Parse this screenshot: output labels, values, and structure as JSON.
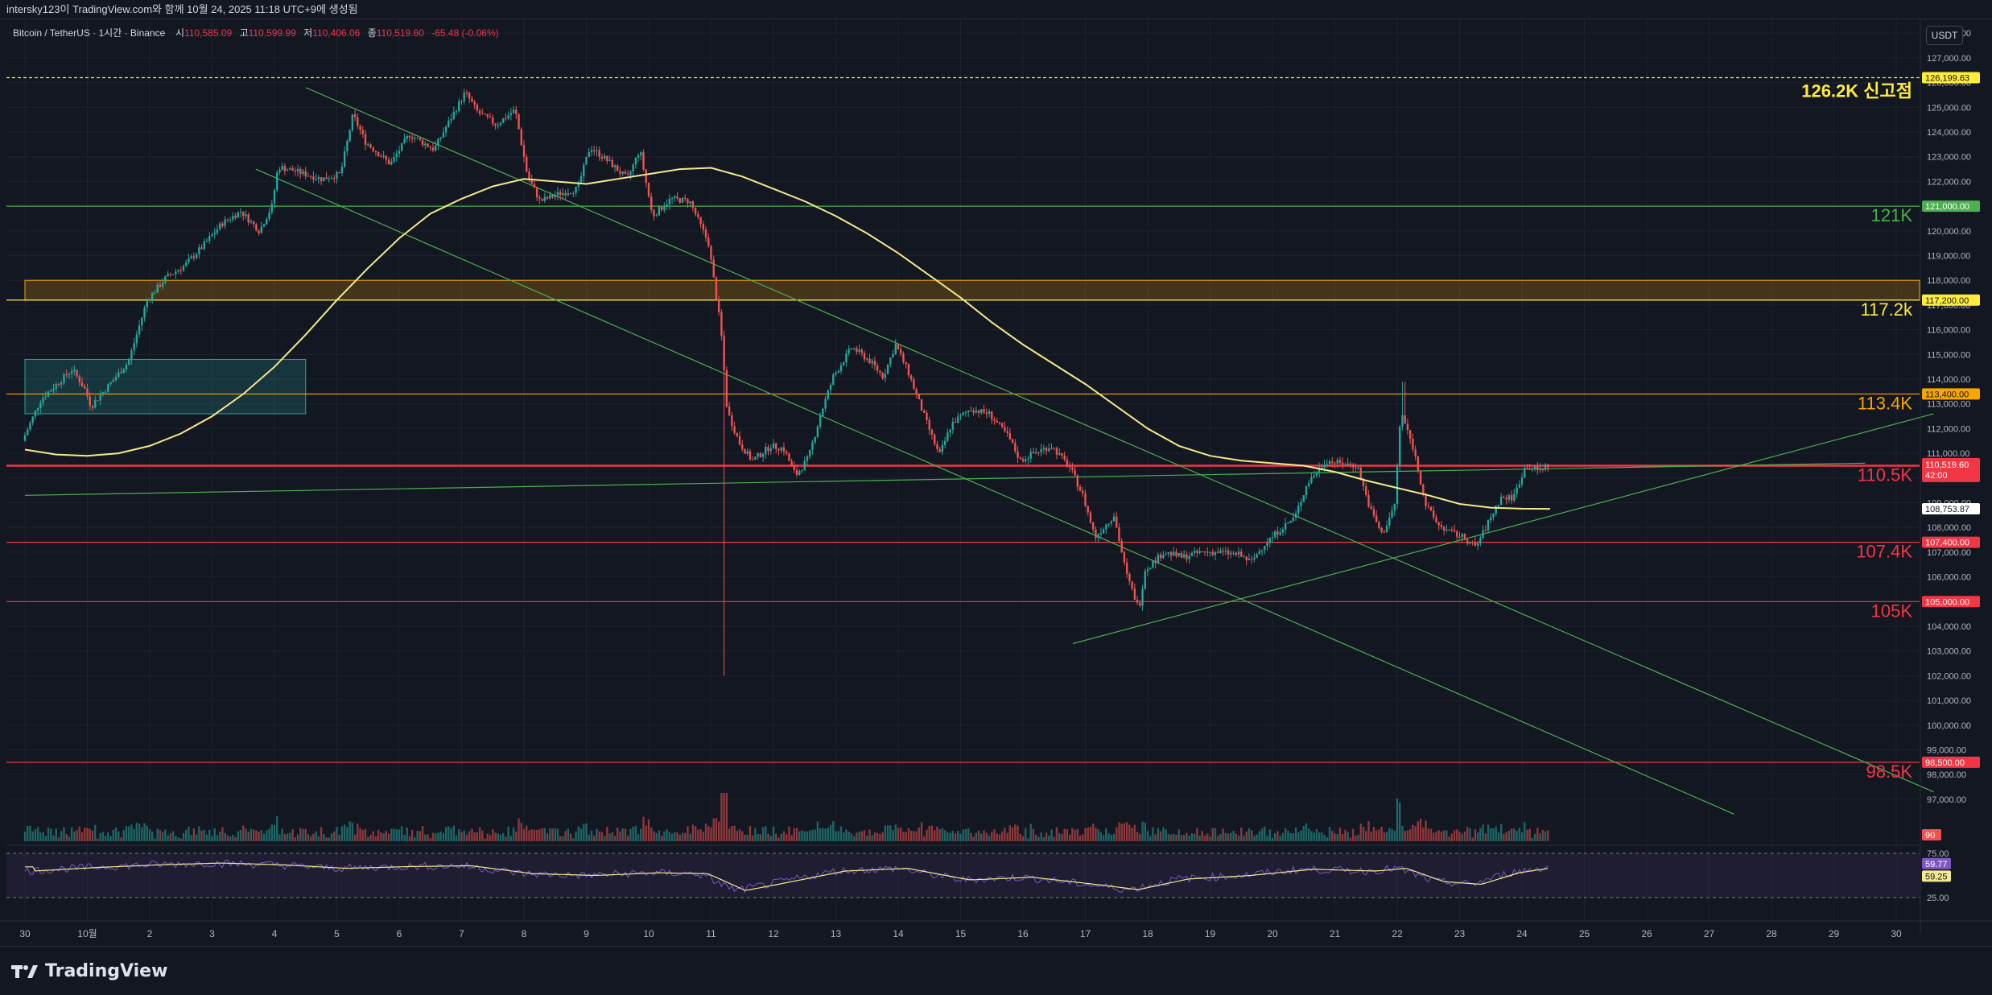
{
  "header": {
    "snapshot_info": "intersky123이 TradingView.com와 함께 10월 24, 2025 11:18 UTC+9에 생성됨"
  },
  "legend": {
    "symbol": "Bitcoin / TetherUS · 1시간 · Binance",
    "open_label": "시",
    "open": "110,585.09",
    "high_label": "고",
    "high": "110,599.99",
    "low_label": "저",
    "low": "110,406.06",
    "close_label": "종",
    "close": "110,519.60",
    "change": "-65.48 (-0.06%)"
  },
  "currency_badge": "USDT",
  "branding": {
    "name": "TradingView"
  },
  "colors": {
    "background": "#131722",
    "grid": "#1e222d",
    "up": "#26a69a",
    "down": "#ef5350",
    "ma": "#f4e98c",
    "trend": "#4caf50",
    "resistance_red": "#f23645",
    "orange": "#f7a600",
    "yellow_label": "#ffeb3b",
    "rsi": "#7e57c2"
  },
  "chart_data": {
    "type": "candlestick",
    "symbol": "BTCUSDT",
    "interval": "1h",
    "y_axis": {
      "min": 96000,
      "max": 128500,
      "tick_labels": [
        "128,000.00",
        "127,000.00",
        "126,000.00",
        "125,000.00",
        "124,000.00",
        "123,000.00",
        "122,000.00",
        "121,000.00",
        "120,000.00",
        "119,000.00",
        "118,000.00",
        "117,000.00",
        "116,000.00",
        "115,000.00",
        "114,000.00",
        "113,000.00",
        "112,000.00",
        "111,000.00",
        "110,000.00",
        "109,000.00",
        "108,000.00",
        "107,000.00",
        "106,000.00",
        "105,000.00",
        "104,000.00",
        "103,000.00",
        "102,000.00",
        "101,000.00",
        "100,000.00",
        "99,000.00",
        "98,000.00",
        "97,000.00"
      ]
    },
    "x_axis": {
      "tick_labels": [
        "30",
        "10월",
        "2",
        "3",
        "4",
        "5",
        "6",
        "7",
        "8",
        "9",
        "10",
        "11",
        "12",
        "13",
        "14",
        "15",
        "16",
        "17",
        "18",
        "19",
        "20",
        "21",
        "22",
        "23",
        "24",
        "25",
        "26",
        "27",
        "28",
        "29",
        "30"
      ]
    },
    "price_path": [
      [
        0,
        111500
      ],
      [
        0.3,
        113200
      ],
      [
        0.8,
        114400
      ],
      [
        1.0,
        113600
      ],
      [
        1.1,
        112900
      ],
      [
        1.3,
        113500
      ],
      [
        1.7,
        114700
      ],
      [
        2.0,
        117200
      ],
      [
        2.3,
        118100
      ],
      [
        2.6,
        118600
      ],
      [
        2.9,
        119400
      ],
      [
        3.2,
        120300
      ],
      [
        3.5,
        120800
      ],
      [
        3.8,
        120000
      ],
      [
        4.0,
        121000
      ],
      [
        4.1,
        122600
      ],
      [
        4.4,
        122400
      ],
      [
        4.8,
        122100
      ],
      [
        5.1,
        122300
      ],
      [
        5.3,
        124700
      ],
      [
        5.5,
        123600
      ],
      [
        5.9,
        122700
      ],
      [
        6.2,
        123900
      ],
      [
        6.6,
        123300
      ],
      [
        6.9,
        124700
      ],
      [
        7.1,
        125600
      ],
      [
        7.3,
        124800
      ],
      [
        7.6,
        124300
      ],
      [
        7.9,
        124900
      ],
      [
        8.1,
        122200
      ],
      [
        8.3,
        121200
      ],
      [
        8.6,
        121500
      ],
      [
        8.9,
        121700
      ],
      [
        9.1,
        123400
      ],
      [
        9.4,
        122800
      ],
      [
        9.7,
        122100
      ],
      [
        9.9,
        123300
      ],
      [
        10.1,
        120600
      ],
      [
        10.4,
        121300
      ],
      [
        10.7,
        121200
      ],
      [
        11.0,
        119500
      ],
      [
        11.2,
        116000
      ],
      [
        11.3,
        112700
      ],
      [
        11.5,
        111400
      ],
      [
        11.7,
        110700
      ],
      [
        12.0,
        111300
      ],
      [
        12.2,
        111200
      ],
      [
        12.4,
        110100
      ],
      [
        12.6,
        110800
      ],
      [
        12.8,
        112600
      ],
      [
        13.0,
        114100
      ],
      [
        13.3,
        115300
      ],
      [
        13.6,
        114700
      ],
      [
        13.8,
        114100
      ],
      [
        14.0,
        115400
      ],
      [
        14.2,
        114300
      ],
      [
        14.4,
        112900
      ],
      [
        14.7,
        110900
      ],
      [
        14.9,
        112200
      ],
      [
        15.2,
        112800
      ],
      [
        15.5,
        112600
      ],
      [
        15.8,
        111700
      ],
      [
        16.0,
        110700
      ],
      [
        16.2,
        111000
      ],
      [
        16.5,
        111300
      ],
      [
        16.8,
        110400
      ],
      [
        17.0,
        109300
      ],
      [
        17.2,
        107600
      ],
      [
        17.5,
        108500
      ],
      [
        17.7,
        106100
      ],
      [
        17.9,
        104700
      ],
      [
        18.0,
        106300
      ],
      [
        18.3,
        107000
      ],
      [
        18.6,
        106800
      ],
      [
        18.9,
        107000
      ],
      [
        19.2,
        107000
      ],
      [
        19.5,
        106900
      ],
      [
        19.7,
        106600
      ],
      [
        19.9,
        107300
      ],
      [
        20.2,
        108000
      ],
      [
        20.4,
        108400
      ],
      [
        20.6,
        109800
      ],
      [
        20.9,
        110700
      ],
      [
        21.1,
        110600
      ],
      [
        21.4,
        110500
      ],
      [
        21.6,
        108800
      ],
      [
        21.8,
        107700
      ],
      [
        22.0,
        108900
      ],
      [
        22.1,
        112700
      ],
      [
        22.3,
        111200
      ],
      [
        22.5,
        108900
      ],
      [
        22.7,
        108100
      ],
      [
        22.9,
        107800
      ],
      [
        23.1,
        107600
      ],
      [
        23.3,
        107200
      ],
      [
        23.5,
        108200
      ],
      [
        23.7,
        109200
      ],
      [
        23.9,
        109200
      ],
      [
        24.1,
        110500
      ],
      [
        24.3,
        110300
      ],
      [
        24.45,
        110520
      ]
    ],
    "moving_average": {
      "color": "#f4e98c",
      "path": [
        [
          0,
          111150
        ],
        [
          0.5,
          110950
        ],
        [
          1.0,
          110900
        ],
        [
          1.5,
          111000
        ],
        [
          2.0,
          111300
        ],
        [
          2.5,
          111800
        ],
        [
          3.0,
          112500
        ],
        [
          3.5,
          113400
        ],
        [
          4.0,
          114500
        ],
        [
          4.5,
          115800
        ],
        [
          5.0,
          117200
        ],
        [
          5.5,
          118500
        ],
        [
          6.0,
          119700
        ],
        [
          6.5,
          120700
        ],
        [
          7.0,
          121300
        ],
        [
          7.5,
          121800
        ],
        [
          8.0,
          122100
        ],
        [
          8.5,
          122000
        ],
        [
          9.0,
          121900
        ],
        [
          9.5,
          122100
        ],
        [
          10.0,
          122300
        ],
        [
          10.5,
          122500
        ],
        [
          11.0,
          122550
        ],
        [
          11.5,
          122200
        ],
        [
          12.0,
          121700
        ],
        [
          12.5,
          121200
        ],
        [
          13.0,
          120600
        ],
        [
          13.5,
          119900
        ],
        [
          14.0,
          119100
        ],
        [
          14.5,
          118200
        ],
        [
          15.0,
          117300
        ],
        [
          15.5,
          116300
        ],
        [
          16.0,
          115400
        ],
        [
          16.5,
          114600
        ],
        [
          17.0,
          113800
        ],
        [
          17.5,
          112900
        ],
        [
          18.0,
          112000
        ],
        [
          18.5,
          111300
        ],
        [
          19.0,
          110900
        ],
        [
          19.5,
          110700
        ],
        [
          20.0,
          110600
        ],
        [
          20.5,
          110500
        ],
        [
          21.0,
          110250
        ],
        [
          21.5,
          109900
        ],
        [
          22.0,
          109600
        ],
        [
          22.5,
          109300
        ],
        [
          23.0,
          108950
        ],
        [
          23.5,
          108800
        ],
        [
          24.0,
          108760
        ],
        [
          24.45,
          108753
        ]
      ]
    },
    "horizontal_levels": [
      {
        "price": 126199.63,
        "label": "126.2K 신고점",
        "axis_label": "126,199.63",
        "color": "#ffeb3b",
        "style": "dashed"
      },
      {
        "price": 121000,
        "label": "121K",
        "axis_label": "121,000.00",
        "color": "#4caf50",
        "style": "solid"
      },
      {
        "price": 117200,
        "label": "117.2k",
        "axis_label": "117,200.00",
        "color": "#ffeb3b",
        "style": "solid"
      },
      {
        "price": 113400,
        "label": "113.4K",
        "axis_label": "113,400.00",
        "color": "#f7a600",
        "style": "solid"
      },
      {
        "price": 110500,
        "label": "110.5K",
        "axis_label": "110,500.00",
        "color": "#f23645",
        "style": "solid"
      },
      {
        "price": 107400,
        "label": "107.4K",
        "axis_label": "107,400.00",
        "color": "#f23645",
        "style": "solid"
      },
      {
        "price": 105000,
        "label": "105K",
        "axis_label": "105,000.00",
        "color": "#f23645",
        "style": "solid"
      },
      {
        "price": 98500,
        "label": "98.5K",
        "axis_label": "98,500.00",
        "color": "#f23645",
        "style": "solid"
      }
    ],
    "zones": [
      {
        "from_price": 117200,
        "to_price": 118000,
        "start_day": 0,
        "end_day": "right",
        "color": "#f7a600"
      },
      {
        "from_price": 112600,
        "to_price": 114800,
        "start_day": 0,
        "end_day": 4.5,
        "color": "#26a69a"
      }
    ],
    "trendlines": [
      {
        "from": [
          4.5,
          125800
        ],
        "to": [
          30.6,
          97300
        ]
      },
      {
        "from": [
          3.7,
          122500
        ],
        "to": [
          27.4,
          96400
        ]
      },
      {
        "from": [
          0,
          109300
        ],
        "to": [
          29.5,
          110600
        ]
      },
      {
        "from": [
          16.8,
          103300
        ],
        "to": [
          30.6,
          112600
        ]
      }
    ],
    "price_badges": [
      {
        "value": "110,519.60",
        "countdown": "42:00",
        "color": "#f23645"
      },
      {
        "value": "108,753.87",
        "color": "#f4e98c"
      }
    ],
    "volume_axis_label": "90",
    "rsi": {
      "axis_labels": [
        "75.00",
        "25.00"
      ],
      "value": "59.77",
      "signal": "59.25",
      "path": [
        [
          0,
          55
        ],
        [
          1,
          59
        ],
        [
          2,
          62
        ],
        [
          3,
          64
        ],
        [
          4,
          62
        ],
        [
          5,
          58
        ],
        [
          6,
          60
        ],
        [
          7,
          61
        ],
        [
          8,
          52
        ],
        [
          9,
          50
        ],
        [
          10,
          53
        ],
        [
          10.8,
          52
        ],
        [
          11.4,
          33
        ],
        [
          12,
          41
        ],
        [
          13,
          55
        ],
        [
          14,
          58
        ],
        [
          15,
          45
        ],
        [
          16,
          48
        ],
        [
          17,
          40
        ],
        [
          17.7,
          34
        ],
        [
          18.5,
          46
        ],
        [
          19.5,
          50
        ],
        [
          20.5,
          57
        ],
        [
          21.5,
          55
        ],
        [
          22,
          58
        ],
        [
          22.6,
          43
        ],
        [
          23.2,
          40
        ],
        [
          23.8,
          53
        ],
        [
          24.45,
          59.77
        ]
      ]
    }
  }
}
